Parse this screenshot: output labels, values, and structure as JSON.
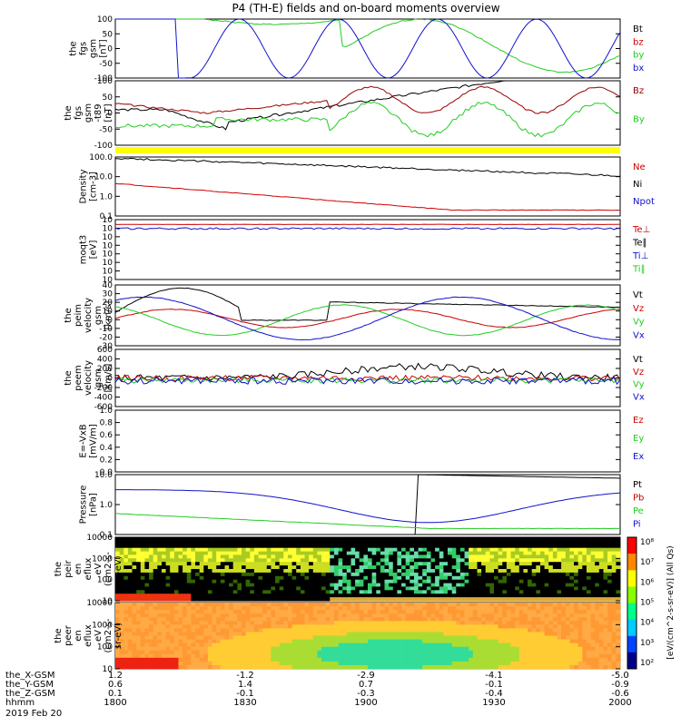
{
  "title": "P4 (TH-E) fields and on-board moments overview",
  "colors": {
    "black": "#000000",
    "red": "#cc0000",
    "green": "#22cc22",
    "blue": "#1111cc",
    "darkred": "#990000",
    "yellow": "#ffff00"
  },
  "chart_data": [
    {
      "type": "line",
      "name": "fgs_gsm",
      "ylabel": [
        "the",
        "fgs",
        "gsm",
        "[nT]"
      ],
      "ylim": [
        -100,
        100
      ],
      "ticks": [
        "100",
        "50",
        "0",
        "-50",
        "-100"
      ],
      "series": [
        {
          "name": "Bt",
          "color": "black"
        },
        {
          "name": "bz",
          "color": "red"
        },
        {
          "name": "by",
          "color": "green"
        },
        {
          "name": "bx",
          "color": "blue"
        }
      ]
    },
    {
      "type": "line",
      "name": "fgs_gsm_t89",
      "ylabel": [
        "the",
        "fgs",
        "gsm",
        "-t89",
        "[nT]"
      ],
      "ylim": [
        -120,
        100
      ],
      "ticks": [
        "100",
        "50",
        "0",
        "-50",
        "-100"
      ],
      "series": [
        {
          "name": "Bz",
          "color": "darkred"
        },
        {
          "name": "By",
          "color": "green"
        }
      ]
    },
    {
      "type": "line",
      "name": "density",
      "ylabel": [
        "Density",
        "[cm-3]"
      ],
      "scale": "log",
      "ylim": [
        0.1,
        100
      ],
      "ticks": [
        "100.0",
        "10.0",
        "1.0",
        "0.1"
      ],
      "series": [
        {
          "name": "Ne",
          "color": "red"
        },
        {
          "name": "Ni",
          "color": "black"
        },
        {
          "name": "Npot",
          "color": "blue"
        }
      ]
    },
    {
      "type": "line",
      "name": "temperature",
      "ylabel": [
        "moqt3",
        "[eV]"
      ],
      "scale": "log",
      "ticks": [
        "10",
        "10",
        "10",
        "10",
        "10",
        "10",
        "10",
        "10"
      ],
      "series": [
        {
          "name": "Te⊥",
          "color": "red"
        },
        {
          "name": "Te∥",
          "color": "black"
        },
        {
          "name": "Ti⊥",
          "color": "blue"
        },
        {
          "name": "Ti∥",
          "color": "green"
        }
      ]
    },
    {
      "type": "line",
      "name": "peim_velocity",
      "ylabel": [
        "the",
        "peim",
        "velocity",
        "gsm",
        "[km/s]"
      ],
      "ylim": [
        -30,
        40
      ],
      "ticks": [
        "40",
        "30",
        "20",
        "10",
        "0",
        "-10",
        "-20",
        "-30"
      ],
      "series": [
        {
          "name": "Vt",
          "color": "black"
        },
        {
          "name": "Vz",
          "color": "red"
        },
        {
          "name": "Vy",
          "color": "green"
        },
        {
          "name": "Vx",
          "color": "blue"
        }
      ]
    },
    {
      "type": "line",
      "name": "peem_velocity",
      "ylabel": [
        "the",
        "peem",
        "velocity",
        "gsm",
        "[km/s]"
      ],
      "ylim": [
        -600,
        600
      ],
      "ticks": [
        "600",
        "400",
        "200",
        "0",
        "-200",
        "-400",
        "-600"
      ],
      "series": [
        {
          "name": "Vt",
          "color": "black"
        },
        {
          "name": "Vz",
          "color": "red"
        },
        {
          "name": "Vy",
          "color": "green"
        },
        {
          "name": "Vx",
          "color": "blue"
        }
      ]
    },
    {
      "type": "line",
      "name": "efield",
      "ylabel": [
        "E=-VxB",
        "[mV/m]"
      ],
      "ylim": [
        0,
        1
      ],
      "ticks": [
        "1.0",
        "0.8",
        "0.6",
        "0.4",
        "0.2",
        "0.0"
      ],
      "series": [
        {
          "name": "Ez",
          "color": "red"
        },
        {
          "name": "Ey",
          "color": "green"
        },
        {
          "name": "Ex",
          "color": "blue"
        }
      ]
    },
    {
      "type": "line",
      "name": "pressure",
      "ylabel": [
        "Pressure",
        "[nPa]"
      ],
      "scale": "log",
      "ticks": [
        "10.0",
        "1.0",
        "0.1"
      ],
      "series": [
        {
          "name": "Pt",
          "color": "black"
        },
        {
          "name": "Pb",
          "color": "red"
        },
        {
          "name": "Pe",
          "color": "green"
        },
        {
          "name": "Pi",
          "color": "blue"
        }
      ]
    },
    {
      "type": "heatmap",
      "name": "peir_en_eflux",
      "ylabel": [
        "the",
        "peir",
        "en",
        "eflux",
        "eV",
        "(cm2-s-",
        "sr-eV)"
      ],
      "ticks": [
        "10000",
        "1000",
        "100",
        "10"
      ]
    },
    {
      "type": "heatmap",
      "name": "peer_en_eflux",
      "ylabel": [
        "the",
        "peer",
        "en",
        "eflux",
        "eV",
        "(cm2-s-",
        "sr-eV)"
      ],
      "ticks": [
        "10000",
        "1000",
        "100",
        "10"
      ]
    }
  ],
  "colorbar": {
    "label": "[eV/(cm^2-s-sr-eV)] (All Qs)",
    "ticks": [
      "10⁸",
      "10⁷",
      "10⁶",
      "10⁵",
      "10⁴",
      "10³",
      "10²"
    ]
  },
  "xaxis": {
    "rows": [
      {
        "label": "the_X-GSM",
        "values": [
          "1.2",
          "-1.2",
          "-2.9",
          "-4.1",
          "-5.0"
        ]
      },
      {
        "label": "the_Y-GSM",
        "values": [
          "0.6",
          "1.4",
          "0.7",
          "-0.1",
          "-0.9"
        ]
      },
      {
        "label": "the_Z-GSM",
        "values": [
          "0.1",
          "-0.1",
          "-0.3",
          "-0.4",
          "-0.6"
        ]
      },
      {
        "label": "hhmm",
        "values": [
          "1800",
          "1830",
          "1900",
          "1930",
          "2000"
        ]
      }
    ],
    "date": "2019 Feb 20"
  }
}
